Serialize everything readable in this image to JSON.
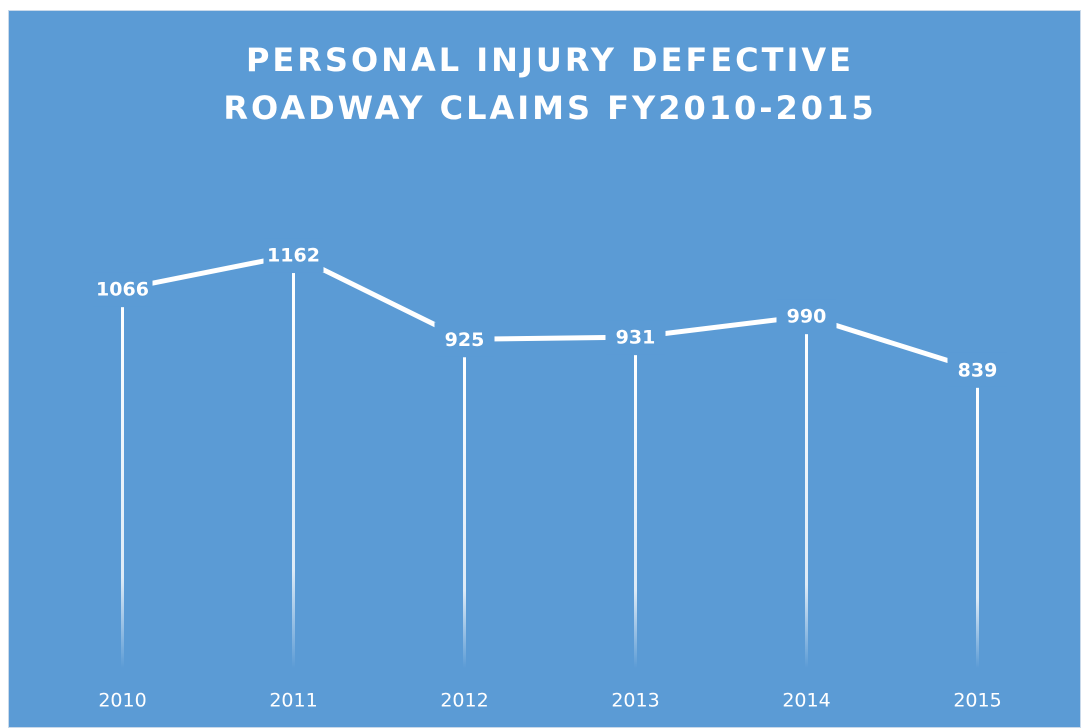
{
  "chart_data": {
    "type": "line",
    "title": "PERSONAL INJURY DEFECTIVE ROADWAY CLAIMS FY2010-2015",
    "categories": [
      "2010",
      "2011",
      "2012",
      "2013",
      "2014",
      "2015"
    ],
    "values": [
      1066,
      1162,
      925,
      931,
      990,
      839
    ],
    "color": "#ffffff",
    "ylim": [
      0,
      1300
    ]
  }
}
